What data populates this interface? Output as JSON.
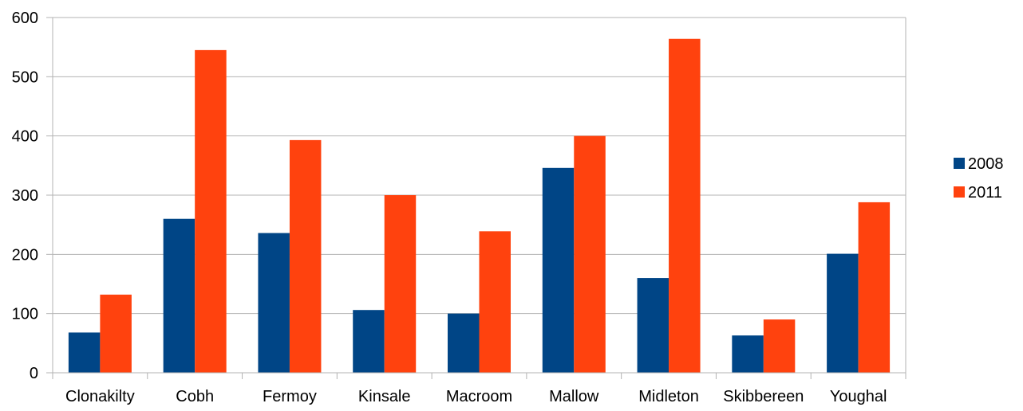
{
  "chart_data": {
    "type": "bar",
    "categories": [
      "Clonakilty",
      "Cobh",
      "Fermoy",
      "Kinsale",
      "Macroom",
      "Mallow",
      "Midleton",
      "Skibbereen",
      "Youghal"
    ],
    "series": [
      {
        "name": "2008",
        "color": "#004586",
        "values": [
          68,
          260,
          236,
          106,
          100,
          346,
          160,
          63,
          201
        ]
      },
      {
        "name": "2011",
        "color": "#ff420e",
        "values": [
          132,
          545,
          393,
          300,
          239,
          400,
          564,
          90,
          288
        ]
      }
    ],
    "title": "",
    "xlabel": "",
    "ylabel": "",
    "ylim": [
      0,
      600
    ],
    "yticks": [
      0,
      100,
      200,
      300,
      400,
      500,
      600
    ],
    "grid": true,
    "legend": "right"
  }
}
